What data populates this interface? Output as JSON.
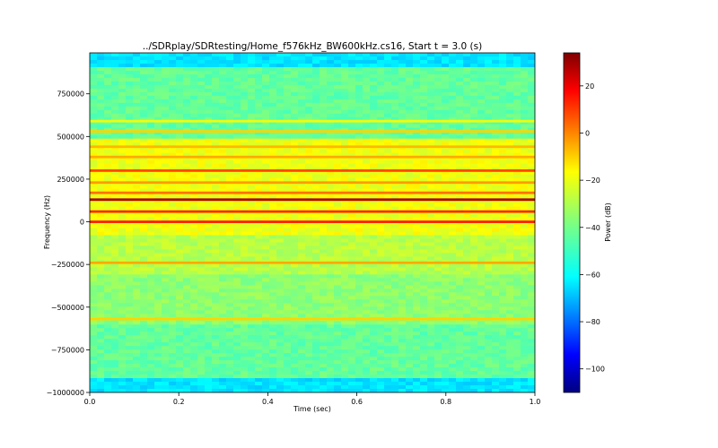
{
  "chart_data": {
    "type": "heatmap",
    "title": "../SDRplay/SDRtesting/Home_f576kHz_BW600kHz.cs16,  Start t = 3.0 (s)",
    "xlabel": "Time (sec)",
    "ylabel": "Frequency (Hz)",
    "xlim": [
      0.0,
      1.0
    ],
    "ylim": [
      -1000000,
      990000
    ],
    "x_ticks": [
      0.0,
      0.2,
      0.4,
      0.6,
      0.8,
      1.0
    ],
    "x_tick_labels": [
      "0.0",
      "0.2",
      "0.4",
      "0.6",
      "0.8",
      "1.0"
    ],
    "y_ticks": [
      -1000000,
      -750000,
      -500000,
      -250000,
      0,
      250000,
      500000,
      750000
    ],
    "y_tick_labels": [
      "−1000000",
      "−750000",
      "−500000",
      "−250000",
      "0",
      "250000",
      "500000",
      "750000"
    ],
    "colorbar": {
      "label": "Power (dB)",
      "colormap": "jet",
      "range": [
        -110,
        34
      ],
      "ticks": [
        -100,
        -80,
        -60,
        -40,
        -20,
        0,
        20
      ],
      "tick_labels": [
        "−100",
        "−80",
        "−60",
        "−40",
        "−20",
        "0",
        "20"
      ]
    },
    "background_power_db": -42,
    "band_edges": [
      {
        "from_hz": 900000,
        "to_hz": 990000,
        "power_db": -60
      },
      {
        "from_hz": -1000000,
        "to_hz": -920000,
        "power_db": -60
      }
    ],
    "bands": [
      {
        "from_hz": -80000,
        "to_hz": 480000,
        "power_db": -22
      },
      {
        "from_hz": -300000,
        "to_hz": -80000,
        "power_db": -30
      },
      {
        "from_hz": -600000,
        "to_hz": -300000,
        "power_db": -36
      }
    ],
    "signal_lines": [
      {
        "freq_hz": 590000,
        "power_db": -22
      },
      {
        "freq_hz": 530000,
        "power_db": -14
      },
      {
        "freq_hz": 440000,
        "power_db": -10
      },
      {
        "freq_hz": 380000,
        "power_db": -8
      },
      {
        "freq_hz": 300000,
        "power_db": 6
      },
      {
        "freq_hz": 230000,
        "power_db": -6
      },
      {
        "freq_hz": 170000,
        "power_db": 0
      },
      {
        "freq_hz": 130000,
        "power_db": 28
      },
      {
        "freq_hz": 60000,
        "power_db": 10
      },
      {
        "freq_hz": 0,
        "power_db": 12
      },
      {
        "freq_hz": -240000,
        "power_db": -8
      },
      {
        "freq_hz": -570000,
        "power_db": -14
      }
    ]
  }
}
